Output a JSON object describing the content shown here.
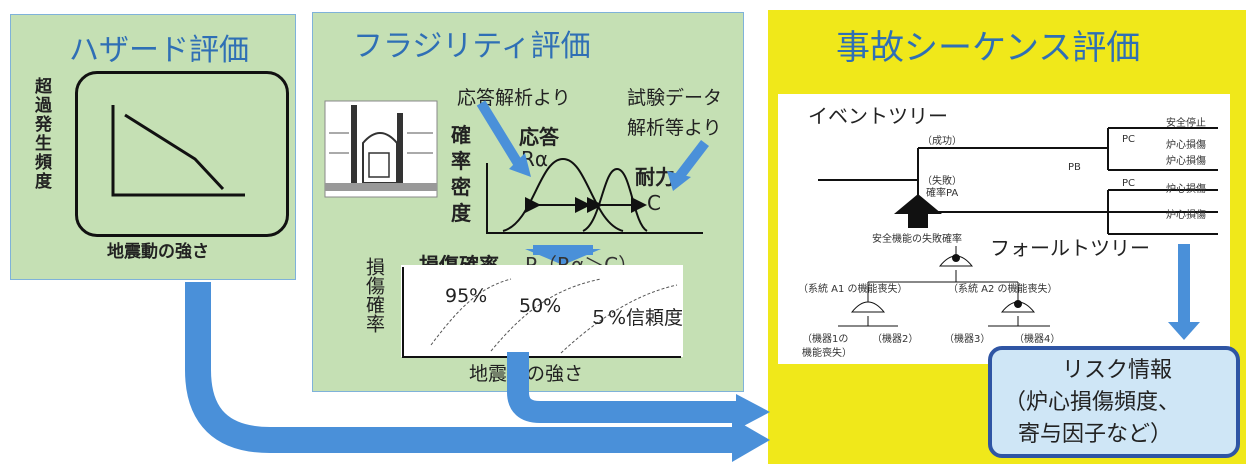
{
  "hazard": {
    "title": "ハザード評価",
    "ylabel": "超過発生頻度",
    "xlabel": "地震動の強さ"
  },
  "fragility": {
    "title": "フラジリティ評価",
    "from_response": "応答解析より",
    "from_test": "試験データ",
    "from_test2": "解析等より",
    "density_label": [
      "確",
      "率",
      "密",
      "度"
    ],
    "response_label": "応答",
    "response_symbol": "Rα",
    "capacity_label": "耐力",
    "capacity_symbol": "C",
    "damage_prob_label": "損傷確率",
    "damage_prob_formula": "P（Rα＞C）",
    "lower_ylabel": "損傷確率",
    "conf_95": "95%",
    "conf_50": "50%",
    "conf_5": "５%信頼度",
    "lower_xlabel": "地震動の強さ"
  },
  "sequence": {
    "title": "事故シーケンス評価",
    "event_tree": "イベントツリー",
    "fault_tree": "フォールトツリー",
    "et_labels": {
      "success": "（成功）",
      "failure": "（失敗）",
      "failure_prob": "確率PA",
      "pb": "PB",
      "pc1": "PC",
      "pc2": "PC",
      "out1": "安全停止",
      "out2": "炉心損傷",
      "out3": "炉心損傷",
      "out4": "炉心損傷",
      "out5": "炉心損傷"
    },
    "ft_labels": {
      "top": "安全機能の失敗確率",
      "a1": "（系統 A1 の機能喪失）",
      "a2": "（系統 A2 の機能喪失）",
      "m1": "（機器1の",
      "m1b": "機能喪失）",
      "m2": "（機器2）",
      "m3": "（機器3）",
      "m4": "（機器4）"
    },
    "risk_title": "リスク情報",
    "risk_line2": "（炉心損傷頻度、",
    "risk_line3": "寄与因子など）"
  },
  "colors": {
    "green_panel": "#c5e0b4",
    "yellow_panel": "#ffff00",
    "arrow_blue": "#4a90d9",
    "title_blue": "#2f6fb5",
    "risk_box": "#cfe6f6",
    "risk_border": "#2f55a4"
  }
}
